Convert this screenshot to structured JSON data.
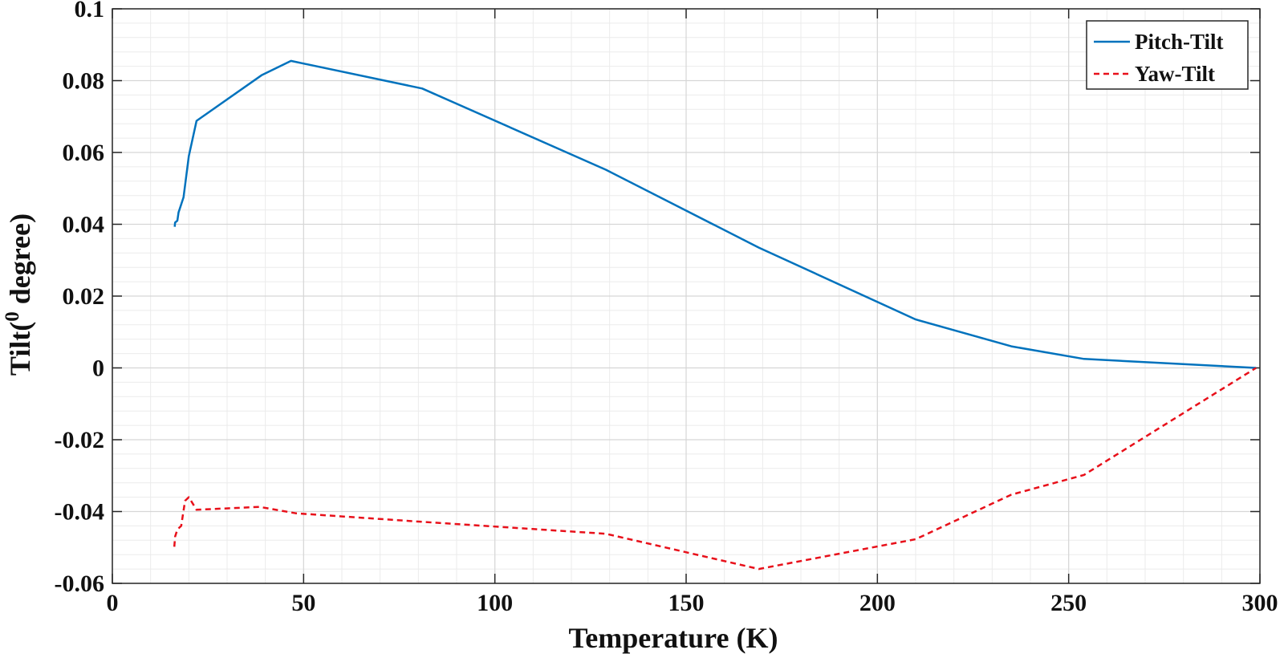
{
  "chart_data": {
    "type": "line",
    "xlabel": "Temperature (K)",
    "ylabel": "Tilt(° degree)",
    "ylabel_parts": {
      "prefix": "Tilt(",
      "superscript": "0",
      "suffix": " degree)"
    },
    "xlim": [
      0,
      300
    ],
    "ylim": [
      -0.06,
      0.1
    ],
    "x_ticks": [
      0,
      50,
      100,
      150,
      200,
      250,
      300
    ],
    "x_tick_labels": [
      "0",
      "50",
      "100",
      "150",
      "200",
      "250",
      "300"
    ],
    "y_ticks": [
      -0.06,
      -0.04,
      -0.02,
      0,
      0.02,
      0.04,
      0.06,
      0.08,
      0.1
    ],
    "y_tick_labels": [
      "-0.06",
      "-0.04",
      "-0.02",
      "0",
      "0.02",
      "0.04",
      "0.06",
      "0.08",
      "0.1"
    ],
    "x_minor_step": 10,
    "y_minor_step": 0.004,
    "grid": true,
    "legend_position": "top-right",
    "series": [
      {
        "name": "Pitch-Tilt",
        "color": "#0072BD",
        "dash": "solid",
        "points": [
          [
            16.3,
            0.0393
          ],
          [
            16.4,
            0.0405
          ],
          [
            17,
            0.041
          ],
          [
            17.3,
            0.0433
          ],
          [
            18.6,
            0.0475
          ],
          [
            20,
            0.059
          ],
          [
            22,
            0.0688
          ],
          [
            39,
            0.0815
          ],
          [
            46.7,
            0.0855
          ],
          [
            81,
            0.0778
          ],
          [
            129,
            0.0552
          ],
          [
            169,
            0.0335
          ],
          [
            210,
            0.0135
          ],
          [
            235,
            0.006
          ],
          [
            254,
            0.0025
          ],
          [
            299,
            0
          ]
        ]
      },
      {
        "name": "Yaw-Tilt",
        "color": "#E8101A",
        "dash": "dashed",
        "points": [
          [
            16.2,
            -0.0498
          ],
          [
            16.4,
            -0.047
          ],
          [
            17,
            -0.045
          ],
          [
            18,
            -0.044
          ],
          [
            19,
            -0.037
          ],
          [
            20,
            -0.036
          ],
          [
            22,
            -0.0395
          ],
          [
            38.5,
            -0.0387
          ],
          [
            48,
            -0.0405
          ],
          [
            80,
            -0.0428
          ],
          [
            129,
            -0.0462
          ],
          [
            169,
            -0.056
          ],
          [
            210,
            -0.0477
          ],
          [
            235,
            -0.0353
          ],
          [
            254,
            -0.0298
          ],
          [
            299,
            0
          ]
        ]
      }
    ]
  }
}
